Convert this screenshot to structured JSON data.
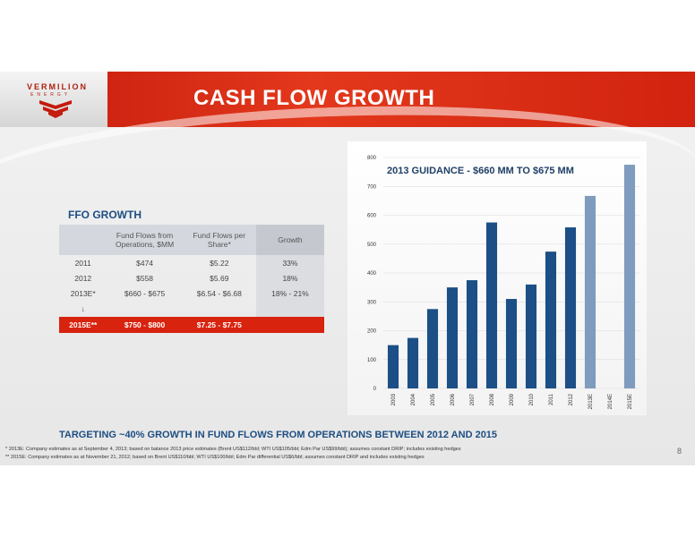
{
  "slide": {
    "title": "CASH FLOW GROWTH",
    "logo": {
      "name": "VERMILION",
      "sub": "ENERGY"
    },
    "page_number": "8",
    "headline": "TARGETING ~40% GROWTH IN FUND FLOWS FROM OPERATIONS BETWEEN 2012 AND 2015",
    "footnotes": [
      "*  2013E: Company estimates as at September 4, 2013; based on balance 2013 price estimates (Brent US$112/bbl; WTI US$105/bbl; Edm Par US$99/bbl); assumes constant DRIP; includes existing hedges",
      "** 2015E: Company estimates as at November 21, 2012; based on Brent US$110/bbl; WTI US$100/bbl; Edm Par differential US$6/bbl; assumes constant DRIP and includes existing hedges"
    ],
    "colors": {
      "banner": "#d8230f",
      "heading": "#1d4e82",
      "bar_actual": "#1b4f86",
      "bar_estimate": "#7f9bbd"
    }
  },
  "ffo_table": {
    "title": "FFO GROWTH",
    "headers": [
      "",
      "Fund Flows from Operations, $MM",
      "Fund Flows per Share*",
      "Growth"
    ],
    "rows": [
      [
        "2011",
        "$474",
        "$5.22",
        "33%"
      ],
      [
        "2012",
        "$558",
        "$5.69",
        "18%"
      ],
      [
        "2013E*",
        "$660 - $675",
        "$6.54 - $6.68",
        "18% - 21%"
      ]
    ],
    "arrow": "↓",
    "highlight_row": [
      "2015E**",
      "$750 - $800",
      "$7.25 - $7.75",
      ""
    ]
  },
  "chart_data": {
    "type": "bar",
    "title": "2013 GUIDANCE - $660 MM TO $675 MM",
    "categories": [
      "2003",
      "2004",
      "2005",
      "2006",
      "2007",
      "2008",
      "2009",
      "2010",
      "2011",
      "2012",
      "2013E",
      "2014E",
      "2015E"
    ],
    "values": [
      150,
      175,
      275,
      350,
      375,
      575,
      310,
      360,
      474,
      558,
      667,
      null,
      775
    ],
    "estimate_categories": [
      "2013E",
      "2014E",
      "2015E"
    ],
    "ylim": [
      0,
      800
    ],
    "yticks": [
      0,
      100,
      200,
      300,
      400,
      500,
      600,
      700,
      800
    ],
    "xlabel": "",
    "ylabel": "",
    "grid": true
  }
}
